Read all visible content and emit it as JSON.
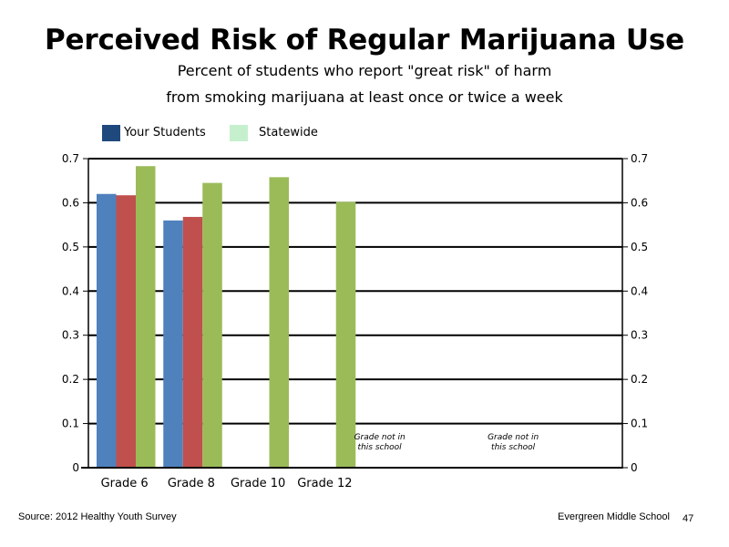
{
  "chart_data": {
    "type": "bar",
    "title": "Perceived Risk of Regular Marijuana Use",
    "subtitle_lines": [
      "Percent of students who report \"great risk\" of harm",
      "from smoking marijuana at least once or twice a week"
    ],
    "categories": [
      "Grade 6",
      "Grade 8",
      "Grade 10",
      "Grade 12"
    ],
    "series": [
      {
        "name": "Your Students",
        "color": "#4F81BD",
        "values": [
          0.62,
          0.56,
          null,
          null
        ]
      },
      {
        "name": "",
        "color": "#C0504D",
        "values": [
          0.617,
          0.568,
          null,
          null
        ]
      },
      {
        "name": "Statewide",
        "color": "#9BBB59",
        "values": [
          0.683,
          0.645,
          0.658,
          0.602
        ]
      }
    ],
    "legend": [
      {
        "name": "Your Students",
        "color": "#1F497D"
      },
      {
        "name": "Statewide",
        "color": "#C6EFCE"
      }
    ],
    "ylim": [
      0,
      0.7
    ],
    "yticks": [
      "0",
      "0.1",
      "0.2",
      "0.3",
      "0.4",
      "0.5",
      "0.6",
      "0.7"
    ],
    "grid": true,
    "notes": [
      {
        "lines": [
          "Grade not in",
          "this school"
        ]
      },
      {
        "lines": [
          "Grade not in",
          "this school"
        ]
      }
    ]
  },
  "footer": {
    "source": "Source: 2012 Healthy Youth Survey",
    "school": "Evergreen Middle  School",
    "page": "47"
  }
}
